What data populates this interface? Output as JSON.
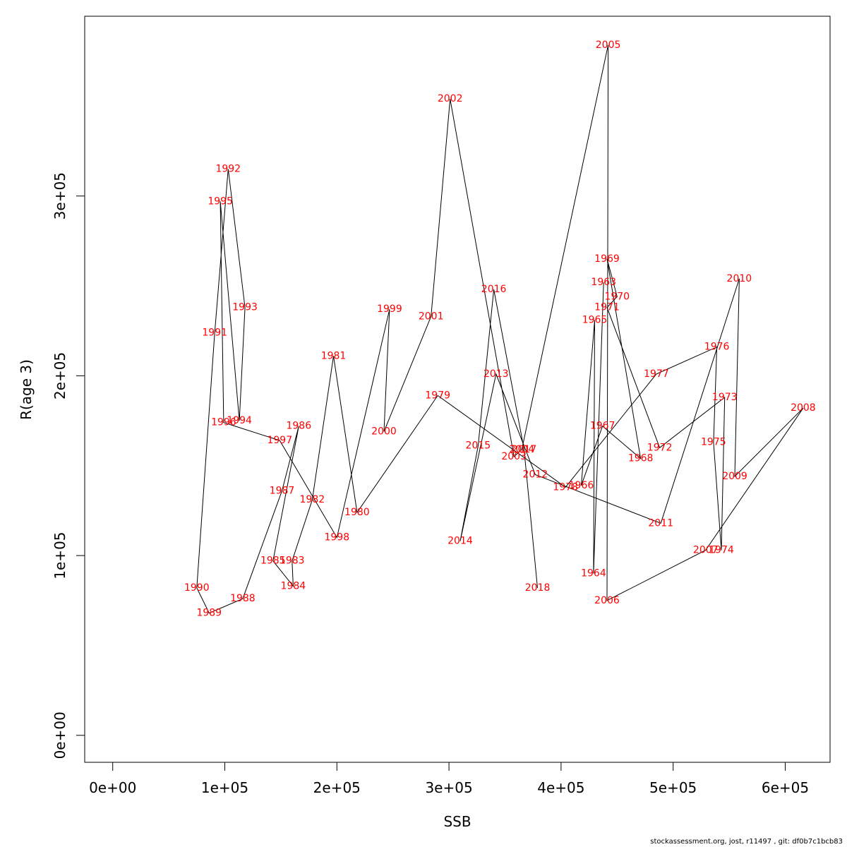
{
  "chart_data": {
    "type": "line",
    "title": "",
    "xlabel": "SSB",
    "ylabel": "R(age 3)",
    "xlim": [
      -25000,
      640000
    ],
    "ylim": [
      -15000,
      400000
    ],
    "xticks": [
      {
        "value": 0,
        "label": "0e+00"
      },
      {
        "value": 100000,
        "label": "1e+05"
      },
      {
        "value": 200000,
        "label": "2e+05"
      },
      {
        "value": 300000,
        "label": "3e+05"
      },
      {
        "value": 400000,
        "label": "4e+05"
      },
      {
        "value": 500000,
        "label": "5e+05"
      },
      {
        "value": 600000,
        "label": "6e+05"
      }
    ],
    "yticks": [
      {
        "value": 0,
        "label": "0e+00"
      },
      {
        "value": 100000,
        "label": "1e+05"
      },
      {
        "value": 200000,
        "label": "2e+05"
      },
      {
        "value": 300000,
        "label": "3e+05"
      }
    ],
    "line_color": "#000000",
    "label_color": "#ff0000",
    "grid": false,
    "points": [
      {
        "label": "1963",
        "x": 438000,
        "y": 252000
      },
      {
        "label": "1964",
        "x": 429000,
        "y": 90000
      },
      {
        "label": "1965",
        "x": 430000,
        "y": 231000
      },
      {
        "label": "1966",
        "x": 418000,
        "y": 139000
      },
      {
        "label": "1967",
        "x": 437000,
        "y": 172000
      },
      {
        "label": "1968",
        "x": 471000,
        "y": 154000
      },
      {
        "label": "1969",
        "x": 441000,
        "y": 265000
      },
      {
        "label": "1970",
        "x": 450000,
        "y": 244000
      },
      {
        "label": "1971",
        "x": 441000,
        "y": 238000
      },
      {
        "label": "1972",
        "x": 488000,
        "y": 160000
      },
      {
        "label": "1973",
        "x": 546000,
        "y": 188000
      },
      {
        "label": "1974",
        "x": 543000,
        "y": 103000
      },
      {
        "label": "1975",
        "x": 536000,
        "y": 163000
      },
      {
        "label": "1976",
        "x": 539000,
        "y": 216000
      },
      {
        "label": "1977",
        "x": 485000,
        "y": 201000
      },
      {
        "label": "1978",
        "x": 404000,
        "y": 138000
      },
      {
        "label": "1979",
        "x": 290000,
        "y": 189000
      },
      {
        "label": "1980",
        "x": 218000,
        "y": 124000
      },
      {
        "label": "1981",
        "x": 197000,
        "y": 211000
      },
      {
        "label": "1982",
        "x": 178000,
        "y": 131000
      },
      {
        "label": "1983",
        "x": 160000,
        "y": 97000
      },
      {
        "label": "1984",
        "x": 161000,
        "y": 83000
      },
      {
        "label": "1985",
        "x": 143000,
        "y": 97000
      },
      {
        "label": "1986",
        "x": 166000,
        "y": 172000
      },
      {
        "label": "1987",
        "x": 151000,
        "y": 136000
      },
      {
        "label": "1988",
        "x": 116000,
        "y": 76000
      },
      {
        "label": "1989",
        "x": 86000,
        "y": 68000
      },
      {
        "label": "1990",
        "x": 75000,
        "y": 82000
      },
      {
        "label": "1991",
        "x": 91000,
        "y": 224000
      },
      {
        "label": "1992",
        "x": 103000,
        "y": 315000
      },
      {
        "label": "1993",
        "x": 118000,
        "y": 238000
      },
      {
        "label": "1994",
        "x": 113000,
        "y": 175000
      },
      {
        "label": "1995",
        "x": 96000,
        "y": 297000
      },
      {
        "label": "1996",
        "x": 99000,
        "y": 174000
      },
      {
        "label": "1997",
        "x": 149000,
        "y": 164000
      },
      {
        "label": "1998",
        "x": 200000,
        "y": 110000
      },
      {
        "label": "1999",
        "x": 247000,
        "y": 237000
      },
      {
        "label": "2000",
        "x": 242000,
        "y": 169000
      },
      {
        "label": "2001",
        "x": 284000,
        "y": 233000
      },
      {
        "label": "2002",
        "x": 301000,
        "y": 354000
      },
      {
        "label": "2003",
        "x": 358000,
        "y": 155000
      },
      {
        "label": "2004",
        "x": 365000,
        "y": 159000
      },
      {
        "label": "2005",
        "x": 442000,
        "y": 384000
      },
      {
        "label": "2006",
        "x": 441000,
        "y": 75000
      },
      {
        "label": "2007",
        "x": 529000,
        "y": 103000
      },
      {
        "label": "2008",
        "x": 616000,
        "y": 182000
      },
      {
        "label": "2009",
        "x": 555000,
        "y": 144000
      },
      {
        "label": "2010",
        "x": 559000,
        "y": 254000
      },
      {
        "label": "2011",
        "x": 489000,
        "y": 118000
      },
      {
        "label": "2012",
        "x": 377000,
        "y": 145000
      },
      {
        "label": "2013",
        "x": 342000,
        "y": 201000
      },
      {
        "label": "2014",
        "x": 310000,
        "y": 108000
      },
      {
        "label": "2015",
        "x": 326000,
        "y": 161000
      },
      {
        "label": "2016",
        "x": 340000,
        "y": 248000
      },
      {
        "label": "2017",
        "x": 367000,
        "y": 159000
      },
      {
        "label": "2018",
        "x": 379000,
        "y": 82000
      }
    ]
  },
  "footer": {
    "text": "stockassessment.org, jost, r11497 , git: df0b7c1bcb83"
  }
}
